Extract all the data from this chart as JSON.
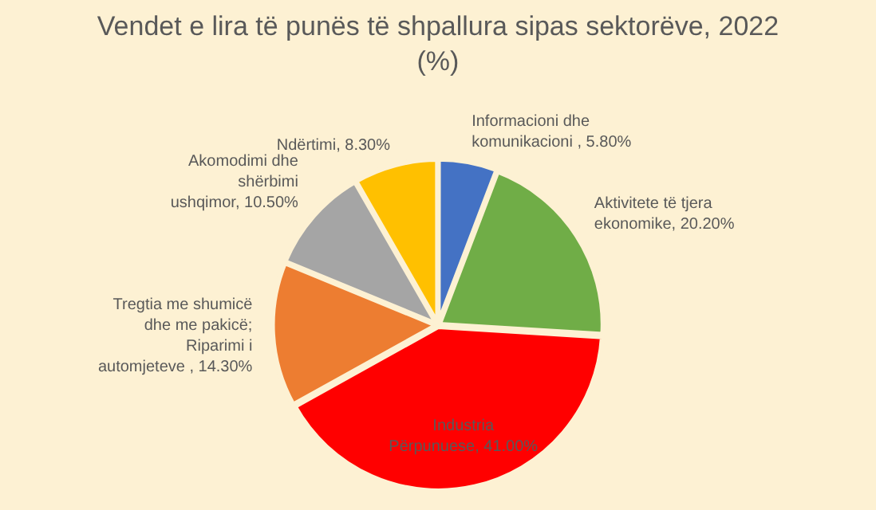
{
  "chart_data": {
    "type": "pie",
    "title": "Vendet e lira të punës të shpallura sipas sektorëve, 2022 (%)",
    "categories": [
      "Informacioni dhe komunikacioni ",
      "Aktivitete të tjera ekonomike",
      "Industria Përpunuese",
      "Tregtia me shumicë dhe me pakicë; Riparimi i automjeteve ",
      "Akomodimi dhe shërbimi ushqimor",
      "Ndërtimi"
    ],
    "values": [
      5.8,
      20.2,
      41.0,
      14.3,
      10.5,
      8.3
    ],
    "value_labels": [
      "5.80%",
      "20.20%",
      "41.00%",
      "14.30%",
      "10.50%",
      "8.30%"
    ],
    "colors": [
      "#4472c4",
      "#70ad47",
      "#ff0000",
      "#ed7d31",
      "#a5a5a5",
      "#ffc000"
    ],
    "legend": false
  }
}
